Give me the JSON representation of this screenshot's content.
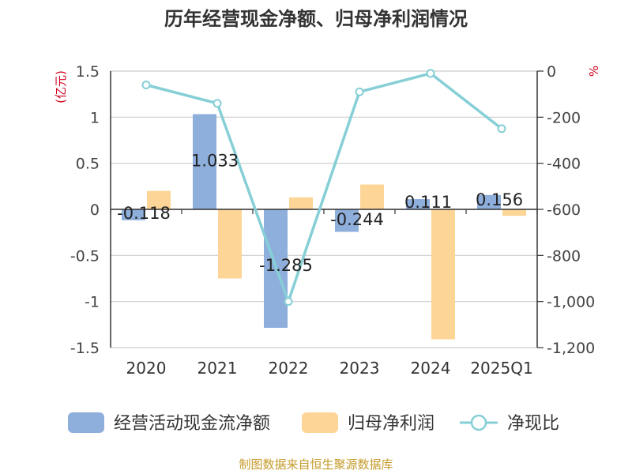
{
  "chart_data": {
    "type": "bar+line",
    "title": "历年经营现金净额、归母净利润情况",
    "left_axis_label": "(亿元)",
    "right_axis_label": "%",
    "categories": [
      "2020",
      "2021",
      "2022",
      "2023",
      "2024",
      "2025Q1"
    ],
    "left_ylim": [
      -1.5,
      1.5
    ],
    "left_ticks": [
      1.5,
      1,
      0.5,
      0,
      -0.5,
      -1,
      -1.5
    ],
    "left_tick_labels": [
      "1.5",
      "1",
      "0.5",
      "0",
      "-0.5",
      "-1",
      "-1.5"
    ],
    "right_ylim": [
      -1200,
      0
    ],
    "right_ticks": [
      0,
      -200,
      -400,
      -600,
      -800,
      -1000,
      -1200
    ],
    "right_tick_labels": [
      "0",
      "-200",
      "-400",
      "-600",
      "-800",
      "-1,000",
      "-1,200"
    ],
    "series": [
      {
        "name": "经营活动现金流净额",
        "type": "bar",
        "axis": "left",
        "color": "#8eaedc",
        "values": [
          -0.118,
          1.033,
          -1.285,
          -0.244,
          0.111,
          0.156
        ],
        "data_labels": [
          "-0.118",
          "1.033",
          "-1.285",
          "-0.244",
          "0.111",
          "0.156"
        ]
      },
      {
        "name": "归母净利润",
        "type": "bar",
        "axis": "left",
        "color": "#fdd596",
        "values": [
          0.2,
          -0.75,
          0.13,
          0.27,
          -1.41,
          -0.07
        ]
      },
      {
        "name": "净现比",
        "type": "line",
        "axis": "right",
        "color": "#86cfd6",
        "values": [
          -60,
          -140,
          -1000,
          -90,
          -10,
          -250
        ]
      }
    ],
    "legend_position": "bottom",
    "grid": true
  },
  "footer": {
    "source": "制图数据来自恒生聚源数据库"
  }
}
